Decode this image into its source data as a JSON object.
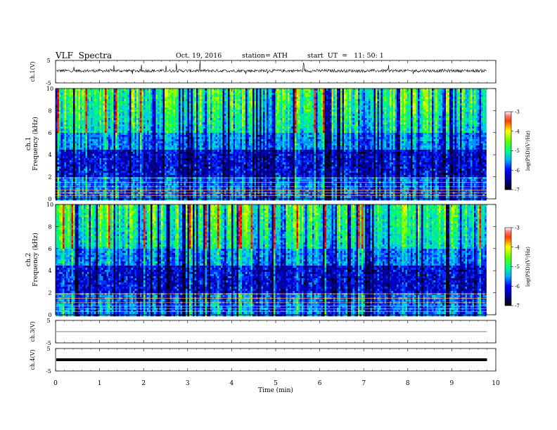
{
  "header": {
    "title": "VLF  Spectra",
    "date": "Oct. 19, 2016",
    "station": "station= ATH",
    "start": "start  UT  =   11: 50: 1"
  },
  "chart_data": [
    {
      "type": "line",
      "panel": "ch1_waveform",
      "ylabel": "ch.1(V)",
      "yticks": [
        "5",
        "-5"
      ],
      "ylim": [
        -5,
        5
      ],
      "x_range_min": [
        0,
        9.8
      ],
      "description_values": "baseline near 0.2 V with spike noise"
    },
    {
      "type": "heatmap",
      "panel": "ch1_spectrogram",
      "ylabel_top": "ch.1",
      "ylabel": "Frequency  (kHz)",
      "yticks": [
        "0",
        "2",
        "4",
        "6",
        "8",
        "10"
      ],
      "ylim": [
        0,
        10
      ],
      "colorbar": {
        "label": "log(PSD)(V²/Hz)",
        "ticks": [
          "-3",
          "-4",
          "-5",
          "-6",
          "-7"
        ],
        "range": [
          -7,
          -3
        ]
      }
    },
    {
      "type": "heatmap",
      "panel": "ch2_spectrogram",
      "ylabel_top": "ch.2",
      "ylabel": "Frequency  (kHz)",
      "yticks": [
        "0",
        "2",
        "4",
        "6",
        "8",
        "10"
      ],
      "ylim": [
        0,
        10
      ],
      "colorbar": {
        "label": "log(PSD)(V²/Hz)",
        "ticks": [
          "-3",
          "-4",
          "-5",
          "-6",
          "-7"
        ],
        "range": [
          -7,
          -3
        ]
      }
    },
    {
      "type": "line",
      "panel": "ch3_waveform",
      "ylabel": "ch.3(V)",
      "yticks": [
        "5",
        "-5"
      ],
      "ylim": [
        -5,
        5
      ]
    },
    {
      "type": "line",
      "panel": "ch4_waveform",
      "ylabel": "ch.4(V)",
      "yticks": [
        "5",
        "-5"
      ],
      "ylim": [
        -5,
        5
      ]
    }
  ],
  "xaxis": {
    "label": "Time  (min)",
    "ticks": [
      "0",
      "1",
      "2",
      "3",
      "4",
      "5",
      "6",
      "7",
      "8",
      "9",
      "10"
    ],
    "range": [
      0,
      10
    ]
  }
}
